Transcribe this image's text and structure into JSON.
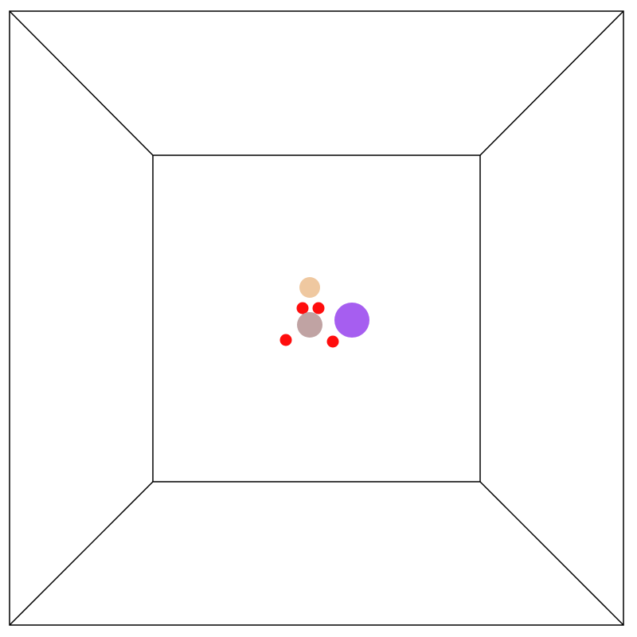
{
  "atoms": [
    {
      "color": "#efc8a0"
    },
    {
      "color": "#ff0d0d"
    },
    {
      "color": "#ff0d0d"
    },
    {
      "color": "#ff0d0d"
    },
    {
      "color": "#ff0d0d"
    },
    {
      "color": "#c0a3a3"
    },
    {
      "color": "#a65ef0"
    }
  ]
}
